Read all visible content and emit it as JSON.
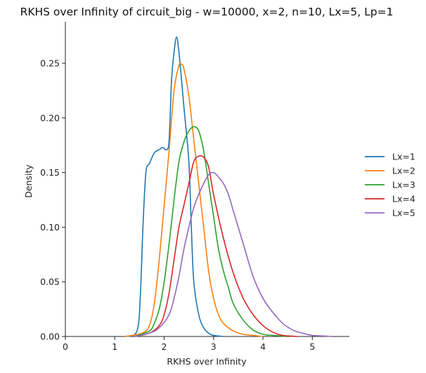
{
  "chart_data": {
    "type": "line",
    "title": "RKHS over Infinity of circuit_big - w=10000, x=2, n=10, Lx=5, Lp=1",
    "xlabel": "RKHS over Infinity",
    "ylabel": "Density",
    "xlim": [
      0,
      5.75
    ],
    "ylim": [
      0,
      0.288
    ],
    "xticks": [
      "0",
      "1",
      "2",
      "3",
      "4",
      "5"
    ],
    "yticks": [
      "0.00",
      "0.05",
      "0.10",
      "0.15",
      "0.20",
      "0.25"
    ],
    "legend_position": "right",
    "series": [
      {
        "name": "Lx=1",
        "color": "#1f77b4",
        "x": [
          1.2,
          1.45,
          1.52,
          1.57,
          1.63,
          1.7,
          1.8,
          1.9,
          1.97,
          2.05,
          2.1,
          2.15,
          2.2,
          2.25,
          2.3,
          2.4,
          2.5,
          2.55,
          2.6,
          2.7,
          2.8,
          2.9,
          3.0,
          3.2
        ],
        "y": [
          0.0,
          0.005,
          0.04,
          0.1,
          0.15,
          0.158,
          0.168,
          0.171,
          0.173,
          0.171,
          0.18,
          0.235,
          0.26,
          0.274,
          0.26,
          0.21,
          0.16,
          0.1,
          0.05,
          0.02,
          0.008,
          0.003,
          0.001,
          0.0
        ]
      },
      {
        "name": "Lx=2",
        "color": "#ff7f0e",
        "x": [
          1.2,
          1.55,
          1.7,
          1.8,
          1.9,
          2.0,
          2.1,
          2.2,
          2.3,
          2.35,
          2.4,
          2.5,
          2.6,
          2.7,
          2.8,
          2.9,
          3.0,
          3.1,
          3.2,
          3.4,
          3.6,
          3.8,
          4.0
        ],
        "y": [
          0.0,
          0.003,
          0.01,
          0.03,
          0.07,
          0.12,
          0.17,
          0.225,
          0.248,
          0.249,
          0.245,
          0.22,
          0.18,
          0.14,
          0.1,
          0.06,
          0.035,
          0.02,
          0.012,
          0.005,
          0.002,
          0.001,
          0.0
        ]
      },
      {
        "name": "Lx=3",
        "color": "#2ca02c",
        "x": [
          1.4,
          1.7,
          1.8,
          1.9,
          2.0,
          2.1,
          2.2,
          2.3,
          2.4,
          2.5,
          2.6,
          2.7,
          2.8,
          2.9,
          3.0,
          3.1,
          3.2,
          3.3,
          3.4,
          3.6,
          3.8,
          4.0,
          4.2,
          4.5
        ],
        "y": [
          0.0,
          0.005,
          0.012,
          0.025,
          0.05,
          0.085,
          0.125,
          0.16,
          0.178,
          0.188,
          0.192,
          0.188,
          0.17,
          0.14,
          0.11,
          0.08,
          0.06,
          0.045,
          0.03,
          0.015,
          0.006,
          0.002,
          0.001,
          0.0
        ]
      },
      {
        "name": "Lx=4",
        "color": "#d62728",
        "x": [
          1.4,
          1.7,
          1.9,
          2.0,
          2.1,
          2.2,
          2.3,
          2.4,
          2.5,
          2.6,
          2.7,
          2.8,
          2.9,
          3.0,
          3.2,
          3.4,
          3.6,
          3.8,
          4.0,
          4.2,
          4.4,
          4.7
        ],
        "y": [
          0.0,
          0.003,
          0.01,
          0.02,
          0.04,
          0.07,
          0.1,
          0.12,
          0.14,
          0.16,
          0.165,
          0.164,
          0.155,
          0.13,
          0.09,
          0.058,
          0.035,
          0.02,
          0.01,
          0.004,
          0.001,
          0.0
        ]
      },
      {
        "name": "Lx=5",
        "color": "#9467bd",
        "x": [
          1.4,
          1.7,
          1.9,
          2.1,
          2.2,
          2.3,
          2.4,
          2.5,
          2.6,
          2.7,
          2.8,
          2.9,
          3.0,
          3.1,
          3.2,
          3.3,
          3.4,
          3.6,
          3.8,
          4.0,
          4.2,
          4.4,
          4.6,
          4.8,
          5.0,
          5.2,
          5.4
        ],
        "y": [
          0.0,
          0.003,
          0.008,
          0.02,
          0.035,
          0.055,
          0.08,
          0.1,
          0.118,
          0.13,
          0.14,
          0.148,
          0.15,
          0.146,
          0.14,
          0.13,
          0.115,
          0.085,
          0.055,
          0.035,
          0.022,
          0.012,
          0.006,
          0.003,
          0.001,
          0.0005,
          0.0
        ]
      }
    ]
  }
}
